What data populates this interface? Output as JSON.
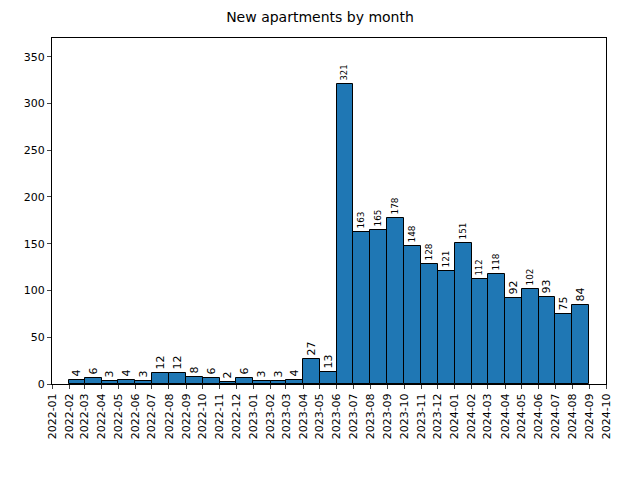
{
  "chart_data": {
    "type": "histogram",
    "title": "New apartments by month",
    "bins": [
      "2022-02",
      "2022-03",
      "2022-04",
      "2022-05",
      "2022-06",
      "2022-07",
      "2022-08",
      "2022-09",
      "2022-10",
      "2022-11",
      "2022-12",
      "2023-01",
      "2023-02",
      "2023-03",
      "2023-04",
      "2023-05",
      "2023-06",
      "2023-07",
      "2023-08",
      "2023-09",
      "2023-10",
      "2023-11",
      "2023-12",
      "2024-01",
      "2024-02",
      "2024-03",
      "2024-04",
      "2024-05",
      "2024-06",
      "2024-07",
      "2024-08",
      "2024-09"
    ],
    "values": [
      4,
      6,
      3,
      4,
      3,
      12,
      12,
      8,
      6,
      2,
      6,
      3,
      3,
      4,
      27,
      13,
      321,
      163,
      165,
      178,
      148,
      128,
      121,
      151,
      112,
      118,
      92,
      102,
      93,
      75,
      84
    ],
    "color": "#1f77b4",
    "xlim": [
      "2022-01",
      "2024-10"
    ],
    "xticks": [
      "2022-01",
      "2022-02",
      "2022-03",
      "2022-04",
      "2022-05",
      "2022-06",
      "2022-07",
      "2022-08",
      "2022-09",
      "2022-10",
      "2022-11",
      "2022-12",
      "2023-01",
      "2023-02",
      "2023-03",
      "2023-04",
      "2023-05",
      "2023-06",
      "2023-07",
      "2023-08",
      "2023-09",
      "2023-10",
      "2023-11",
      "2023-12",
      "2024-01",
      "2024-02",
      "2024-03",
      "2024-04",
      "2024-05",
      "2024-06",
      "2024-07",
      "2024-08",
      "2024-09",
      "2024-10"
    ],
    "ylim": [
      0,
      370
    ],
    "yticks": [
      0,
      50,
      100,
      150,
      200,
      250,
      300,
      350
    ],
    "grid": false,
    "data_labels": true
  }
}
